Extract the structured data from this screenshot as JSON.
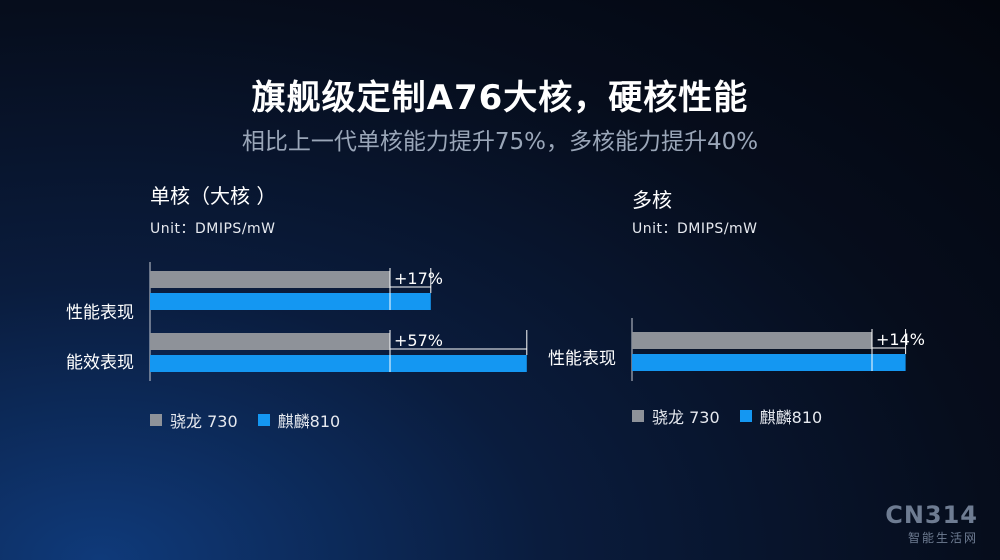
{
  "header": {
    "title": "旗舰级定制A76大核，硬核性能",
    "subtitle": "相比上一代单核能力提升75%，多核能力提升40%"
  },
  "colors": {
    "snapdragon": "#8e9299",
    "kirin": "#1497f2",
    "axis": "#c8ccd4"
  },
  "panels": [
    {
      "title": "单核（大核 ）",
      "unit": "Unit：DMIPS/mW",
      "legend": [
        {
          "label": "骁龙 730",
          "color": "#8e9299"
        },
        {
          "label": "麒麟810",
          "color": "#1497f2"
        }
      ]
    },
    {
      "title": "多核",
      "unit": "Unit：DMIPS/mW",
      "legend": [
        {
          "label": "骁龙 730",
          "color": "#8e9299"
        },
        {
          "label": "麒麟810",
          "color": "#1497f2"
        }
      ]
    }
  ],
  "chart_data": [
    {
      "type": "bar",
      "orientation": "horizontal",
      "title": "单核（大核 ）",
      "unit": "Unit：DMIPS/mW",
      "categories": [
        "性能表现",
        "能效表现"
      ],
      "series": [
        {
          "name": "骁龙 730",
          "values": [
            1.0,
            1.0
          ]
        },
        {
          "name": "麒麟810",
          "values": [
            1.17,
            1.57
          ]
        }
      ],
      "annotations": [
        "+17%",
        "+57%"
      ],
      "legend_position": "bottom-left"
    },
    {
      "type": "bar",
      "orientation": "horizontal",
      "title": "多核",
      "unit": "Unit：DMIPS/mW",
      "categories": [
        "性能表现"
      ],
      "series": [
        {
          "name": "骁龙 730",
          "values": [
            1.0
          ]
        },
        {
          "name": "麒麟810",
          "values": [
            1.14
          ]
        }
      ],
      "annotations": [
        "+14%"
      ],
      "legend_position": "bottom-left"
    }
  ],
  "watermark": {
    "brand": "CN314",
    "tagline": "智能生活网"
  }
}
